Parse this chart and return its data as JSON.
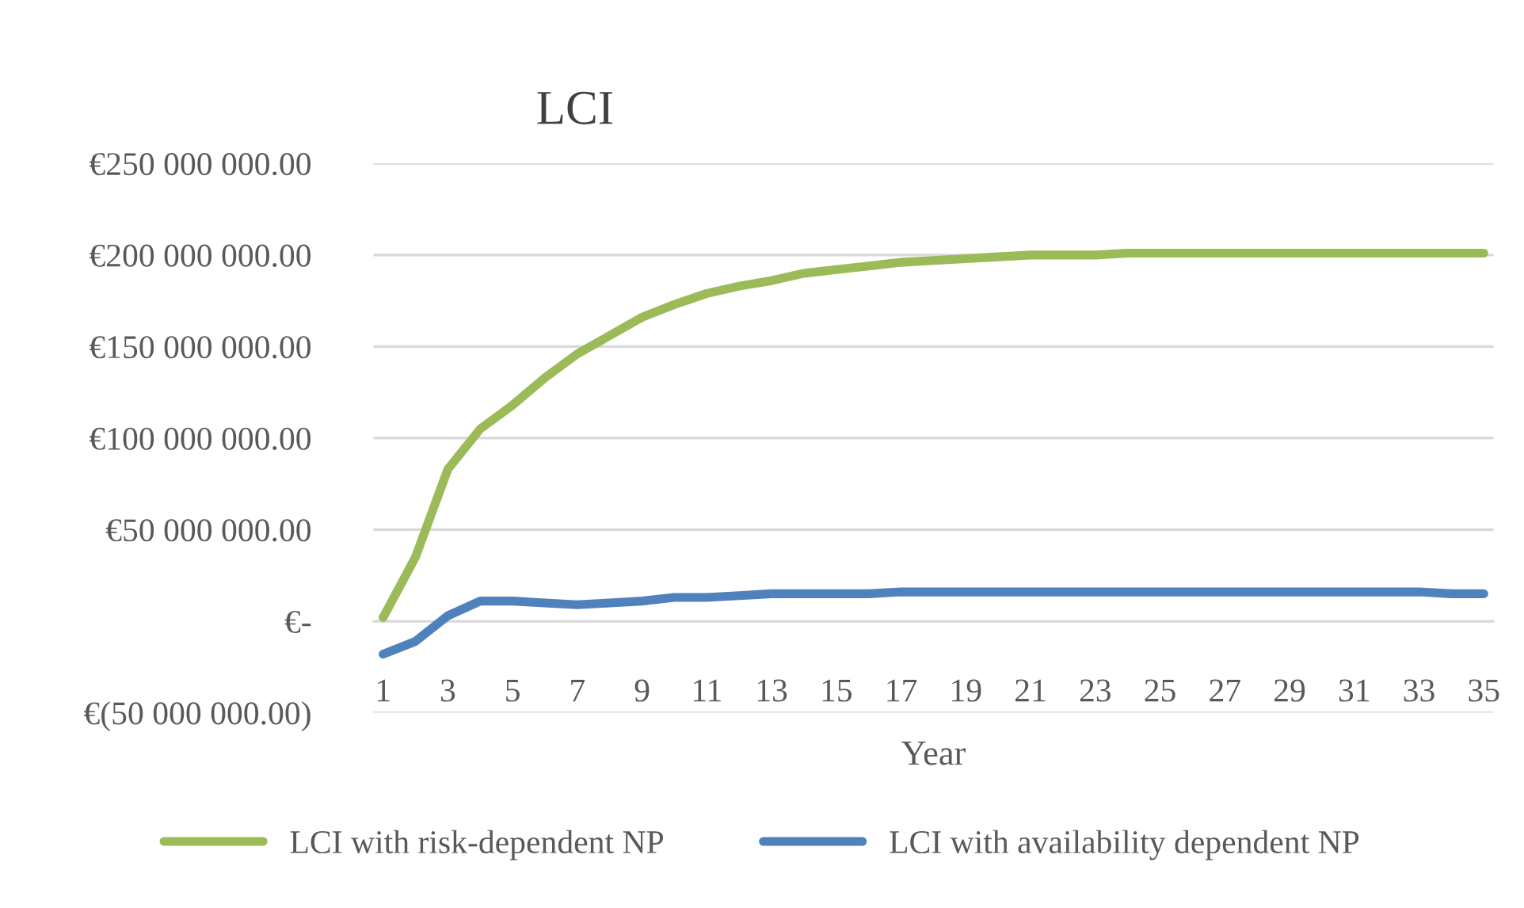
{
  "chart_data": {
    "type": "line",
    "title": "LCI",
    "xlabel": "Year",
    "categories": [
      "1",
      null,
      "3",
      null,
      "5",
      null,
      "7",
      null,
      "9",
      null,
      "11",
      null,
      "13",
      null,
      "15",
      null,
      "17",
      null,
      "19",
      null,
      "21",
      null,
      "23",
      null,
      "25",
      null,
      "27",
      null,
      "29",
      null,
      "31",
      null,
      "33",
      null,
      "35"
    ],
    "series": [
      {
        "name": "LCI with risk-dependent NP",
        "color": "#9bbb59",
        "values": [
          2000000,
          35000000,
          83000000,
          105000000,
          118000000,
          133000000,
          146000000,
          156000000,
          166000000,
          173000000,
          179000000,
          183000000,
          186000000,
          190000000,
          192000000,
          194000000,
          196000000,
          197000000,
          198000000,
          199000000,
          200000000,
          200000000,
          200000000,
          201000000,
          201000000,
          201000000,
          201000000,
          201000000,
          201000000,
          201000000,
          201000000,
          201000000,
          201000000,
          201000000,
          201000000
        ]
      },
      {
        "name": "LCI with availability dependent NP",
        "color": "#4f81bd",
        "values": [
          -18000000,
          -11000000,
          3000000,
          11000000,
          11000000,
          10000000,
          9000000,
          10000000,
          11000000,
          13000000,
          13000000,
          14000000,
          15000000,
          15000000,
          15000000,
          15000000,
          16000000,
          16000000,
          16000000,
          16000000,
          16000000,
          16000000,
          16000000,
          16000000,
          16000000,
          16000000,
          16000000,
          16000000,
          16000000,
          16000000,
          16000000,
          16000000,
          16000000,
          15000000,
          15000000
        ]
      }
    ],
    "ylim": [
      -50000000,
      250000000
    ],
    "yticks": [
      {
        "value": -50000000,
        "label": "€(50 000 000.00)"
      },
      {
        "value": 0,
        "label": "€-"
      },
      {
        "value": 50000000,
        "label": "€50 000 000.00"
      },
      {
        "value": 100000000,
        "label": "€100 000 000.00"
      },
      {
        "value": 150000000,
        "label": "€150 000 000.00"
      },
      {
        "value": 200000000,
        "label": "€200 000 000.00"
      },
      {
        "value": 250000000,
        "label": "€250 000 000.00"
      }
    ],
    "grid": "y",
    "legend": "bottom",
    "line_style": "solid",
    "marker": "none"
  }
}
